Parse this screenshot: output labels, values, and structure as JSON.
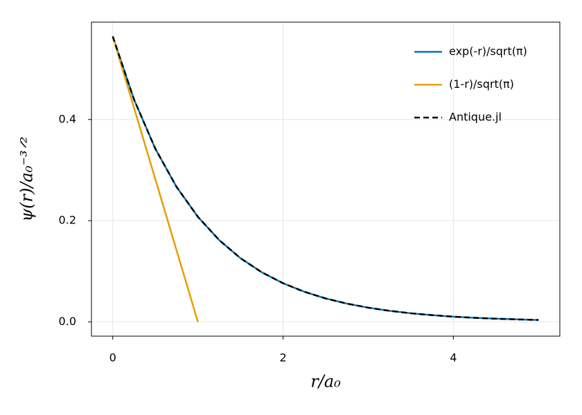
{
  "chart_data": {
    "type": "line",
    "xlabel": "r/a₀",
    "ylabel": "ψ(r)/a₀⁻³ᐟ²",
    "x": [
      0,
      0.25,
      0.5,
      0.75,
      1,
      1.25,
      1.5,
      1.75,
      2,
      2.25,
      2.5,
      2.75,
      3,
      3.25,
      3.5,
      3.75,
      4,
      4.25,
      4.5,
      4.75,
      5
    ],
    "series": [
      {
        "name": "exp(-r)/sqrt(π)",
        "color": "#0072b2",
        "linestyle": "solid",
        "values": [
          0.5642,
          0.4394,
          0.3422,
          0.2665,
          0.2076,
          0.1616,
          0.1259,
          0.098,
          0.0764,
          0.0595,
          0.0463,
          0.0361,
          0.0281,
          0.0219,
          0.017,
          0.0133,
          0.0103,
          0.008,
          0.0063,
          0.0049,
          0.0038
        ]
      },
      {
        "name": "(1-r)/sqrt(π)",
        "color": "#e69f00",
        "linestyle": "solid",
        "values": [
          0.5642,
          0.4231,
          0.2821,
          0.141,
          0,
          null,
          null,
          null,
          null,
          null,
          null,
          null,
          null,
          null,
          null,
          null,
          null,
          null,
          null,
          null,
          null
        ]
      },
      {
        "name": "Antique.jl",
        "color": "#000000",
        "linestyle": "dashed",
        "values": [
          0.5642,
          0.4394,
          0.3422,
          0.2665,
          0.2076,
          0.1616,
          0.1259,
          0.098,
          0.0764,
          0.0595,
          0.0463,
          0.0361,
          0.0281,
          0.0219,
          0.017,
          0.0133,
          0.0103,
          0.008,
          0.0063,
          0.0049,
          0.0038
        ]
      }
    ],
    "xlim": [
      -0.25,
      5.25
    ],
    "xticks": [
      0,
      2,
      4
    ],
    "ylim": [
      -0.0282,
      0.5924
    ],
    "yticks": [
      {
        "value": 0,
        "label": "0.0"
      },
      0.2,
      0.4
    ],
    "grid": true,
    "legend": "top-right"
  }
}
